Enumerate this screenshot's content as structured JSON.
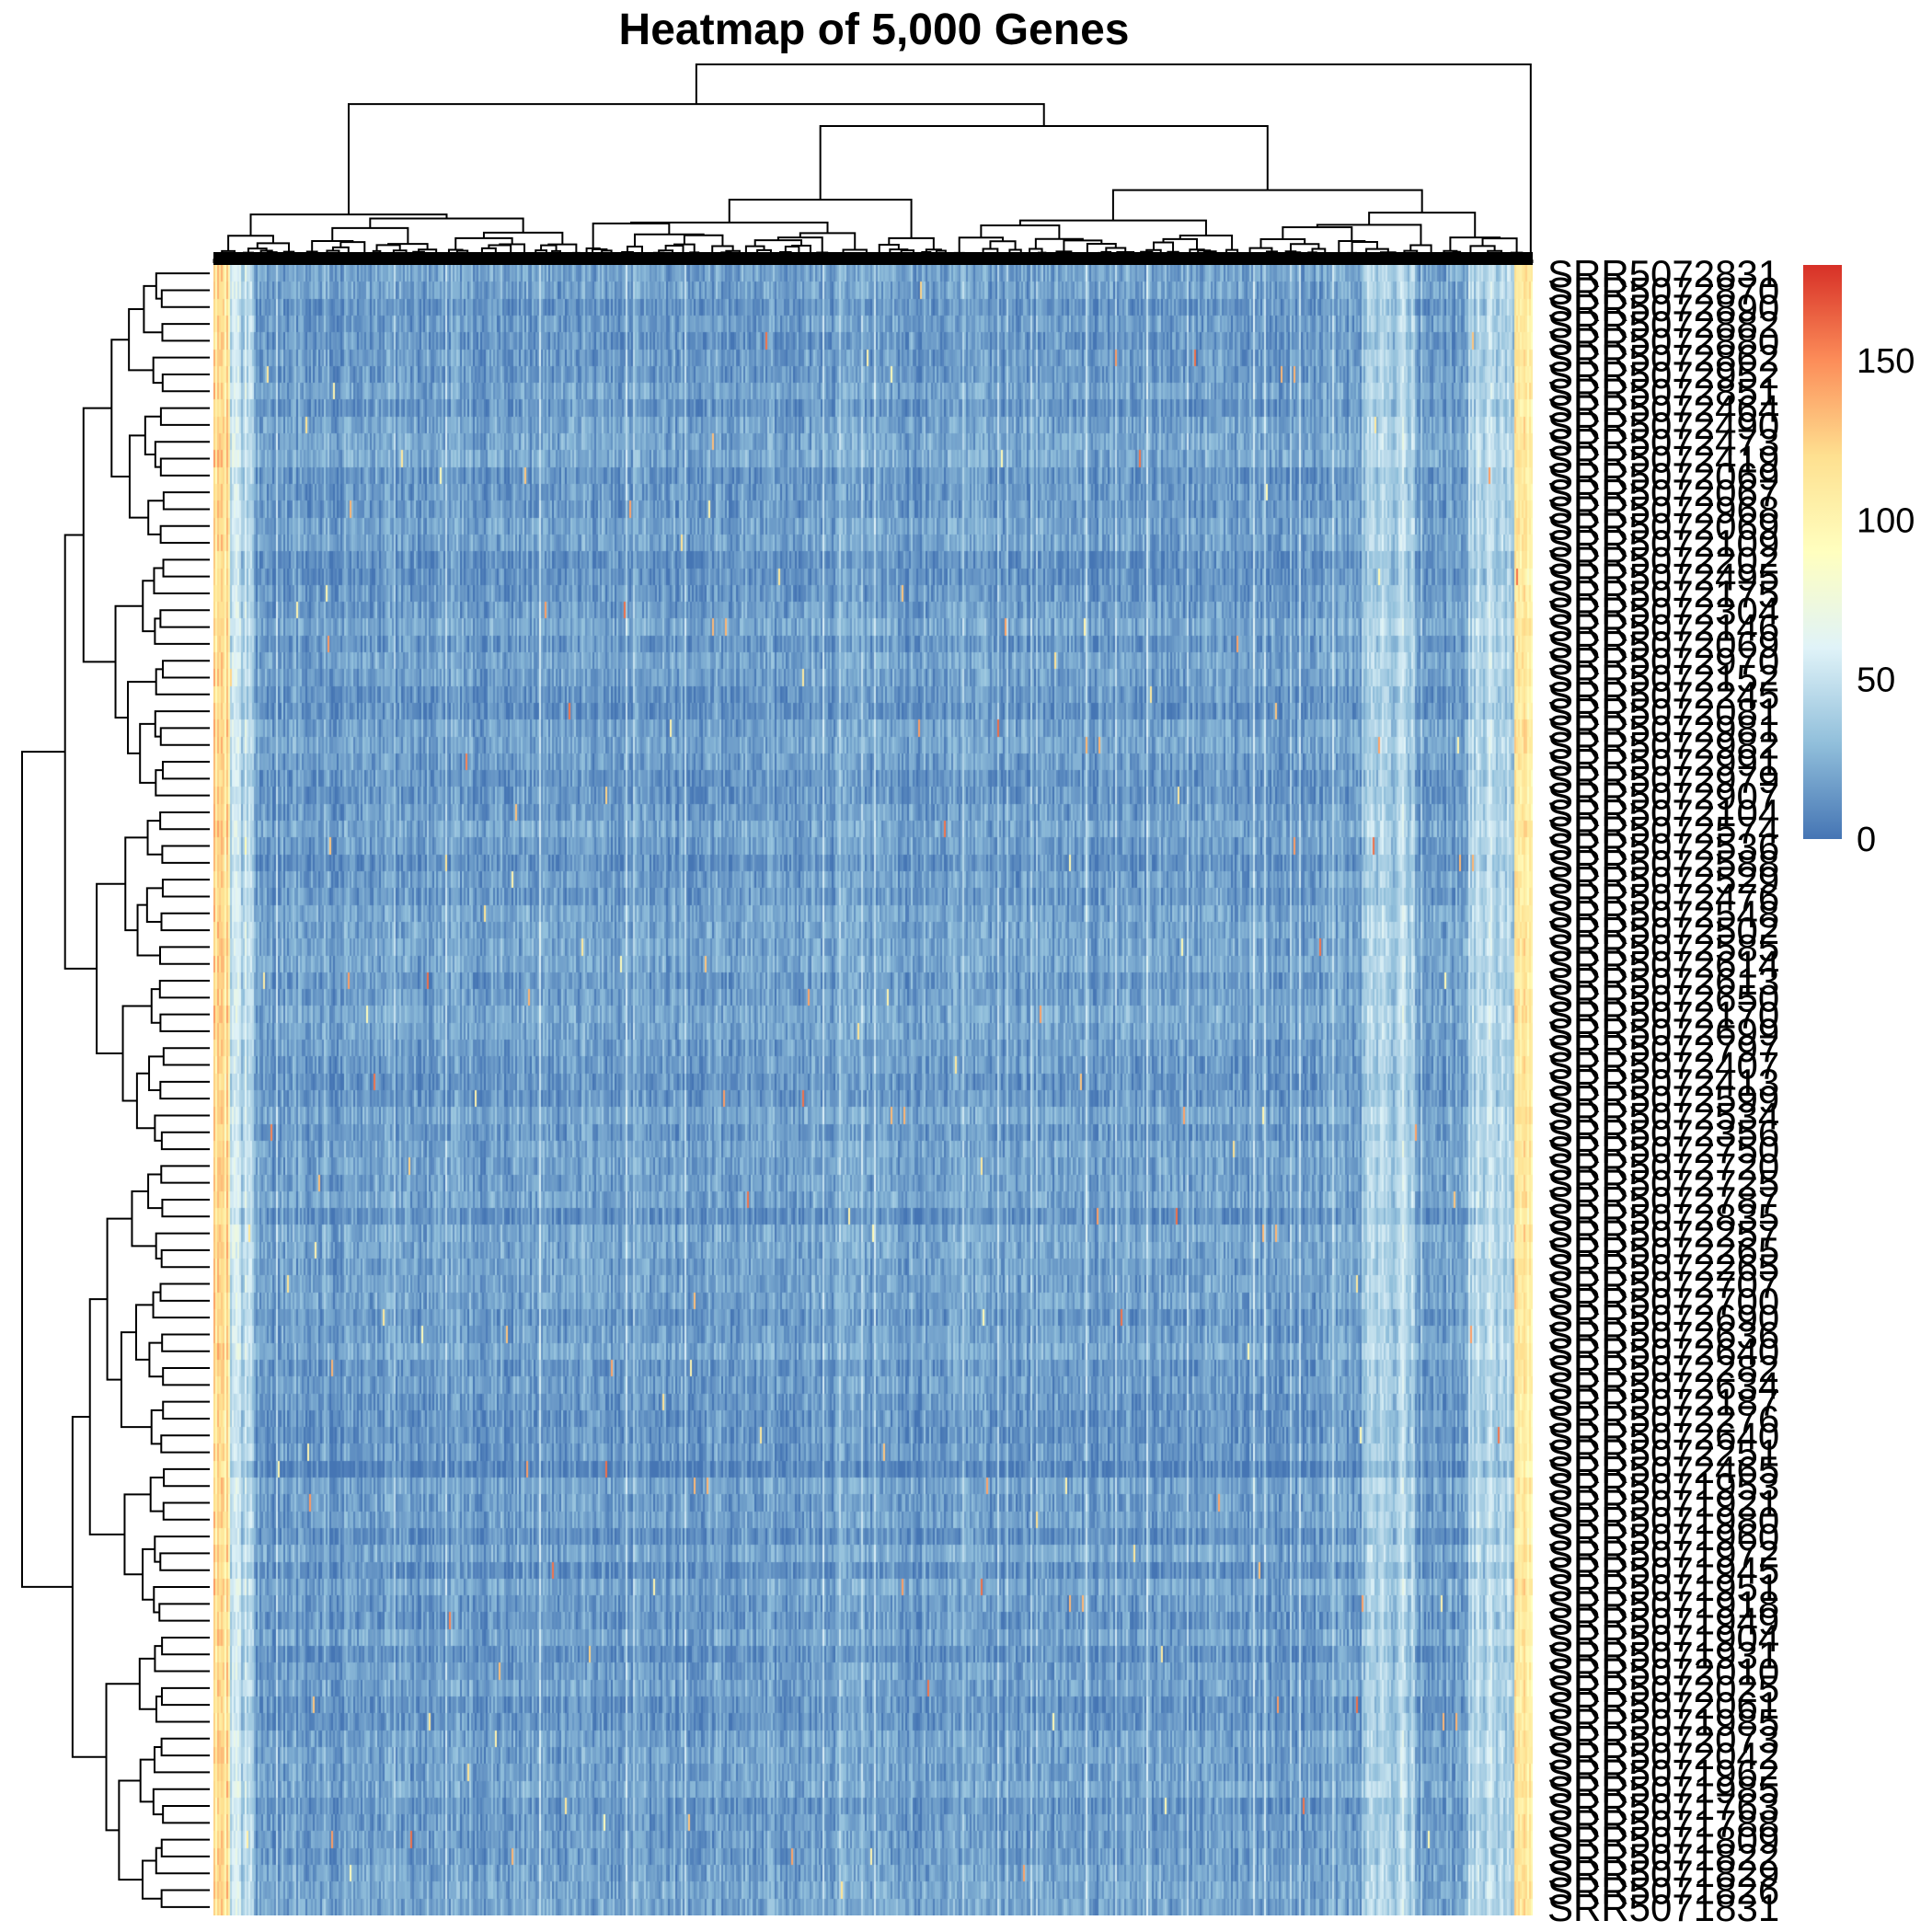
{
  "chart_data": {
    "type": "heatmap",
    "title": "Heatmap of 5,000 Genes",
    "n_columns": 5000,
    "row_labels": [
      "SRR5072831",
      "SRR5072870",
      "SRR5072890",
      "SRR5072882",
      "SRR5072880",
      "SRR5072862",
      "SRR5072952",
      "SRR5072851",
      "SRR5072464",
      "SRR5072490",
      "SRR5072473",
      "SRR5072419",
      "SRR5072069",
      "SRR5072067",
      "SRR5072968",
      "SRR5072069",
      "SRR5072109",
      "SRR5072202",
      "SRR5072495",
      "SRR5072175",
      "SRR5072304",
      "SRR5072146",
      "SRR5072069",
      "SRR5072970",
      "SRR5072152",
      "SRR5072245",
      "SRR5072081",
      "SRR5072981",
      "SRR5072982",
      "SRR5072991",
      "SRR5072979",
      "SRR5072907",
      "SRR5072104",
      "SRR5072574",
      "SRR5072536",
      "SRR5072588",
      "SRR5072529",
      "SRR5072476",
      "SRR5072548",
      "SRR5072502",
      "SRR5072585",
      "SRR5072614",
      "SRR5072613",
      "SRR5072650",
      "SRR5072170",
      "SRR5072699",
      "SRR5072797",
      "SRR5072407",
      "SRR5072413",
      "SRR5072599",
      "SRR5072534",
      "SRR5072356",
      "SRR5072750",
      "SRR5072720",
      "SRR5072725",
      "SRR5072787",
      "SRR5072835",
      "SRR5072257",
      "SRR5072265",
      "SRR5072265",
      "SRR5072707",
      "SRR5072700",
      "SRR5072690",
      "SRR5072636",
      "SRR5072640",
      "SRR5072282",
      "SRR5072634",
      "SRR5072187",
      "SRR5072276",
      "SRR5072640",
      "SRR5072251",
      "SRR5072465",
      "SRR5071953",
      "SRR5071921",
      "SRR5071980",
      "SRR5071960",
      "SRR5071972",
      "SRR5071945",
      "SRR5071951",
      "SRR5071918",
      "SRR5071949",
      "SRR5071904",
      "SRR5071931",
      "SRR5072010",
      "SRR5072025",
      "SRR5072061",
      "SRR5071985",
      "SRR5072073",
      "SRR5072042",
      "SRR5071962",
      "SRR5071985",
      "SRR5071763",
      "SRR5071788",
      "SRR5071809",
      "SRR5071822",
      "SRR5071829",
      "SRR5071826",
      "SRR5071831"
    ],
    "value_range": [
      0,
      180
    ],
    "color_scale": [
      "#4575b4",
      "#91bfdb",
      "#e0f3f8",
      "#ffffbf",
      "#fee090",
      "#fc8d59",
      "#d73027"
    ],
    "legend": {
      "position": "right",
      "ticks": [
        0,
        50,
        100,
        150
      ]
    },
    "row_dendrogram": true,
    "column_dendrogram": true
  }
}
